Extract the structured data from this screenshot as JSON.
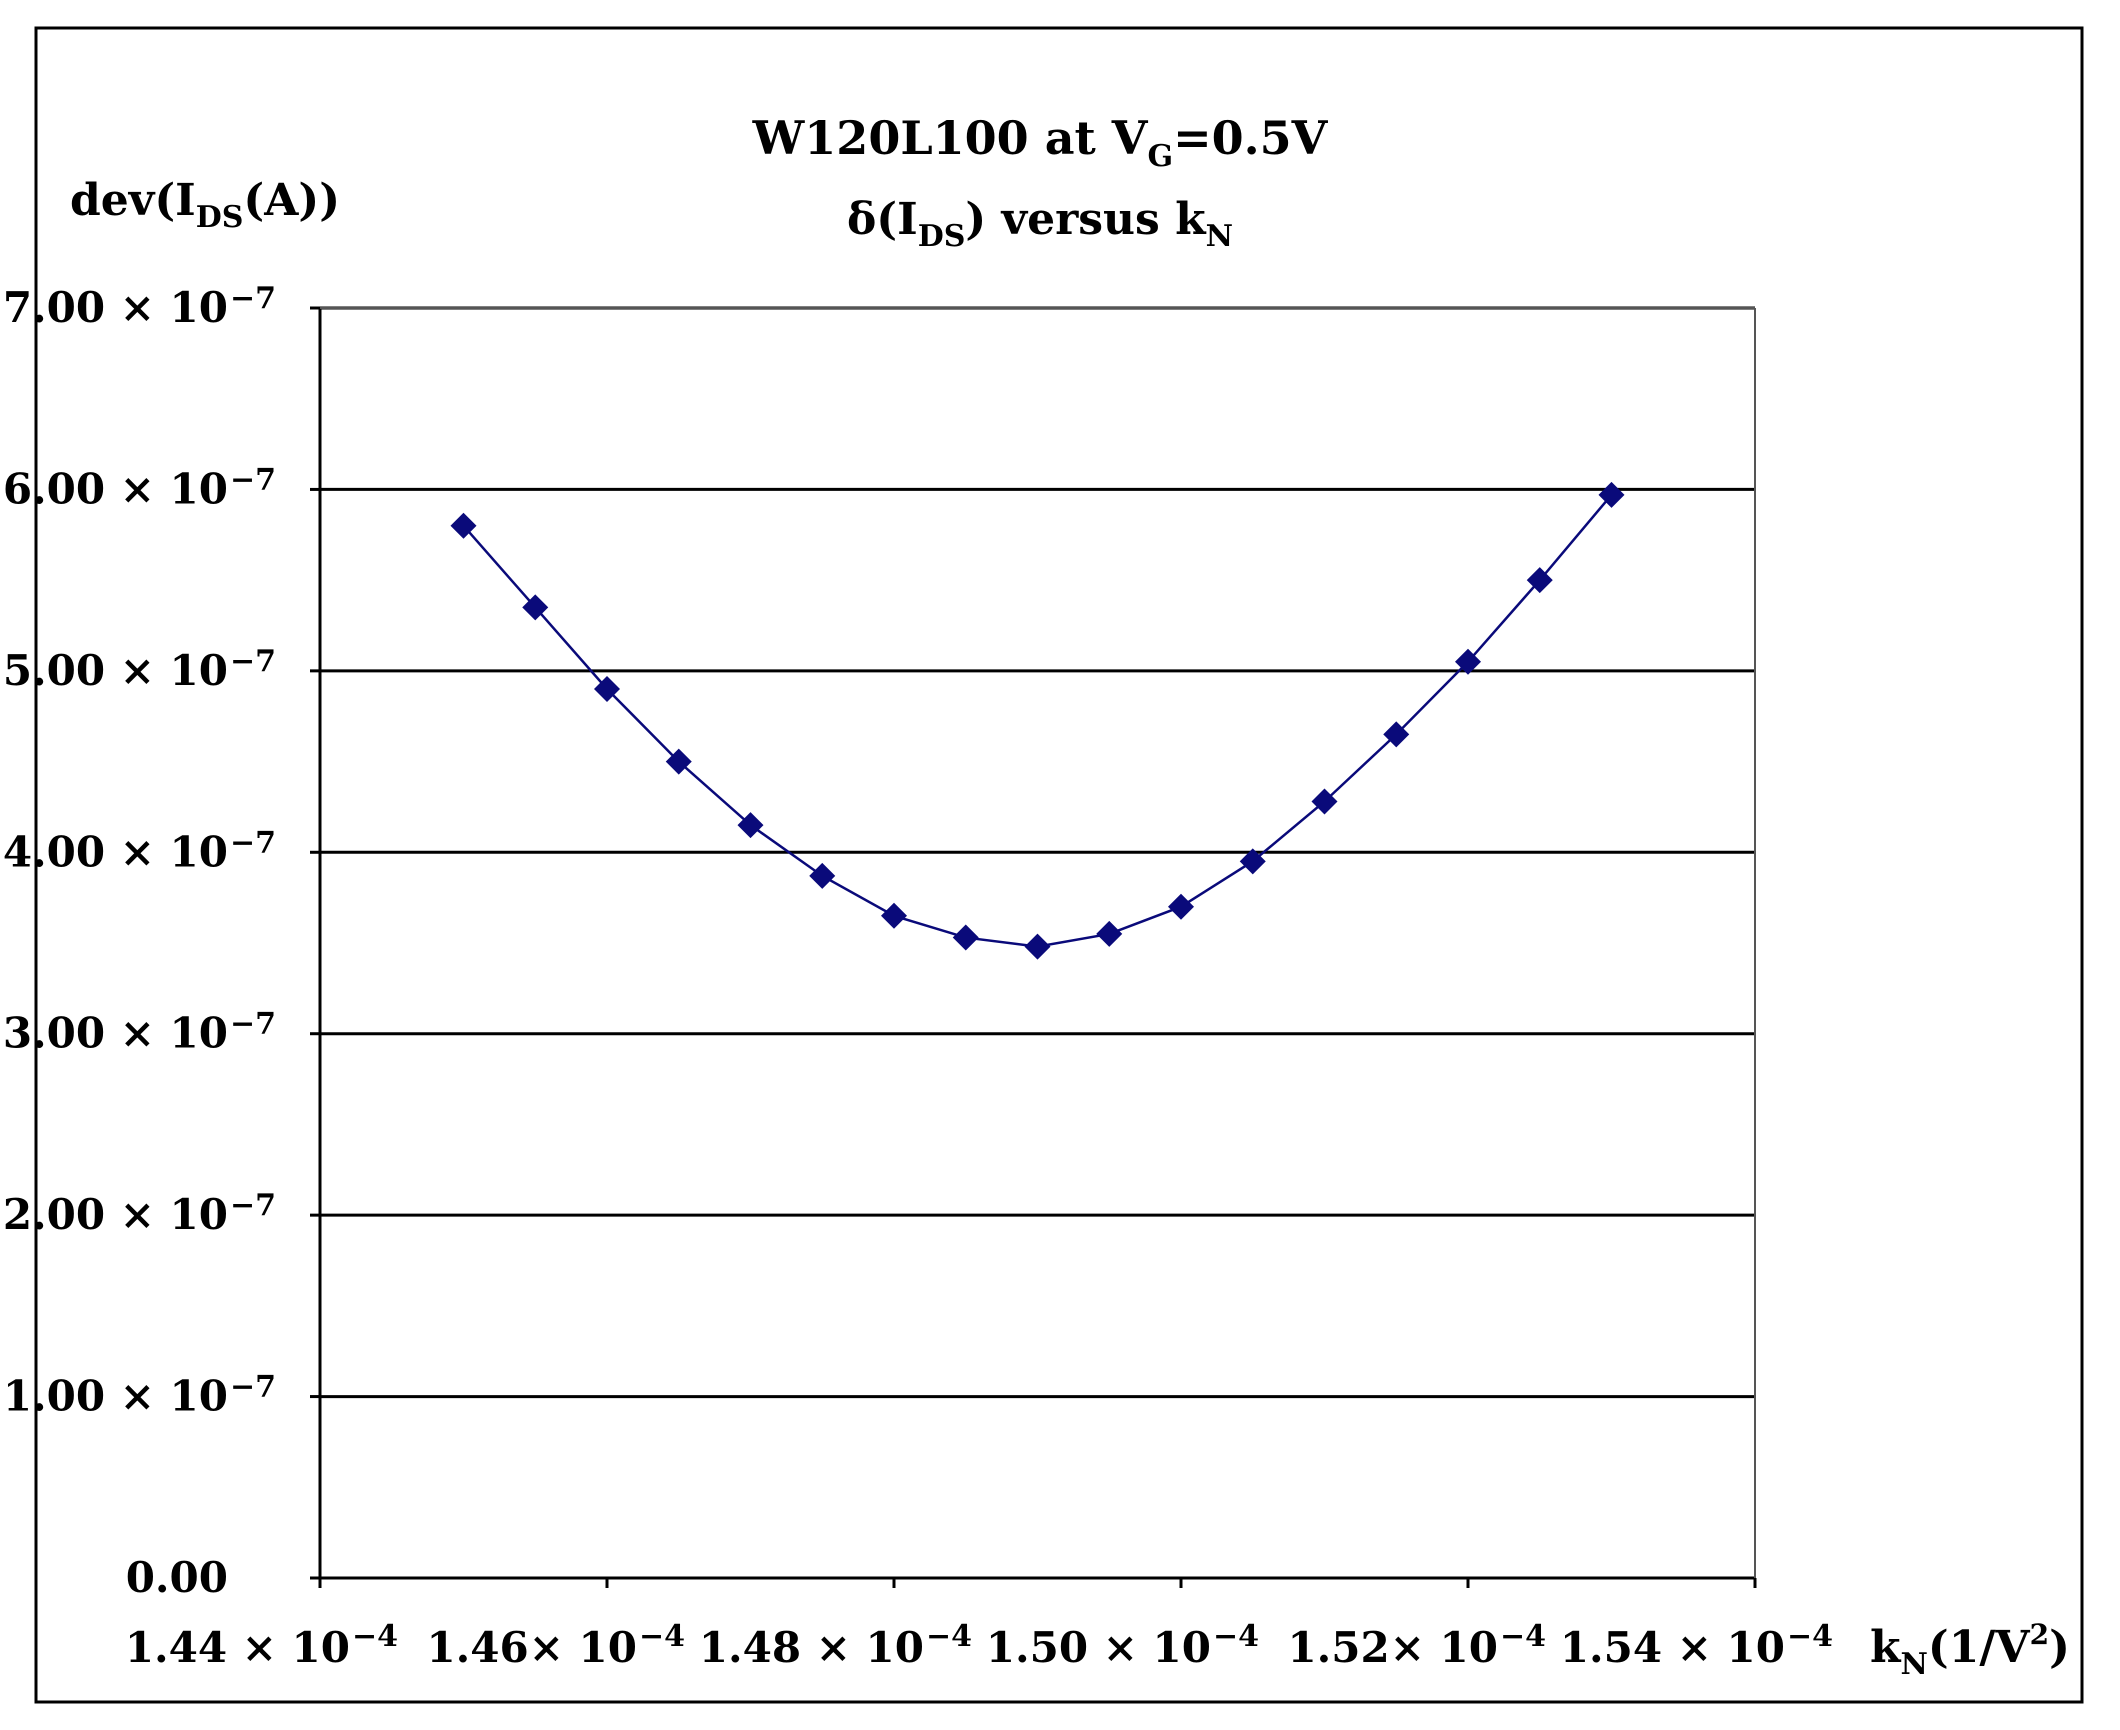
{
  "chart_data": {
    "type": "line",
    "title_line1": "W120L100 at V",
    "title_line1_sub": "G",
    "title_line1_suffix": "=0.5V",
    "title_line2_prefix": "δ(I",
    "title_line2_sub": "DS",
    "title_line2_mid": ") versus k",
    "title_line2_sub2": "N",
    "ylabel_prefix": "dev(I",
    "ylabel_sub": "DS",
    "ylabel_suffix": "(A))",
    "xlabel_prefix": "k",
    "xlabel_sub": "N",
    "xlabel_mid": "(1/V",
    "xlabel_sup": "2",
    "xlabel_suffix": ")",
    "x_ticks": [
      {
        "value": 0.000144,
        "mant": "1.44 × 10",
        "exp": "−4"
      },
      {
        "value": 0.000146,
        "mant": "1.46× 10",
        "exp": "−4"
      },
      {
        "value": 0.000148,
        "mant": "1.48 × 10",
        "exp": "−4"
      },
      {
        "value": 0.00015,
        "mant": "1.50 × 10",
        "exp": "−4"
      },
      {
        "value": 0.000152,
        "mant": "1.52× 10",
        "exp": "−4"
      },
      {
        "value": 0.000154,
        "mant": "1.54 × 10",
        "exp": "−4"
      }
    ],
    "y_ticks": [
      {
        "value": 0.0,
        "mant": "0.00",
        "exp": ""
      },
      {
        "value": 1e-07,
        "mant": "1.00 × 10",
        "exp": "−7"
      },
      {
        "value": 2e-07,
        "mant": "2.00 × 10",
        "exp": "−7"
      },
      {
        "value": 3e-07,
        "mant": "3.00 × 10",
        "exp": "−7"
      },
      {
        "value": 4e-07,
        "mant": "4.00 × 10",
        "exp": "−7"
      },
      {
        "value": 5e-07,
        "mant": "5.00 × 10",
        "exp": "−7"
      },
      {
        "value": 6e-07,
        "mant": "6.00 × 10",
        "exp": "−7"
      },
      {
        "value": 7e-07,
        "mant": "7.00 × 10",
        "exp": "−7"
      }
    ],
    "xlim": [
      0.000144,
      0.000154
    ],
    "ylim": [
      0,
      7e-07
    ],
    "grid": "horizontal",
    "series": [
      {
        "color": "#0a0a7a",
        "x": [
          0.000145,
          0.0001455,
          0.000146,
          0.0001465,
          0.000147,
          0.0001475,
          0.000148,
          0.0001485,
          0.000149,
          0.0001495,
          0.00015,
          0.0001505,
          0.000151,
          0.0001515,
          0.000152,
          0.0001525,
          0.000153
        ],
        "y": [
          5.8e-07,
          5.35e-07,
          4.9e-07,
          4.5e-07,
          4.15e-07,
          3.87e-07,
          3.65e-07,
          3.53e-07,
          3.48e-07,
          3.55e-07,
          3.7e-07,
          3.95e-07,
          4.28e-07,
          4.65e-07,
          5.05e-07,
          5.5e-07,
          5.97e-07
        ]
      }
    ]
  }
}
